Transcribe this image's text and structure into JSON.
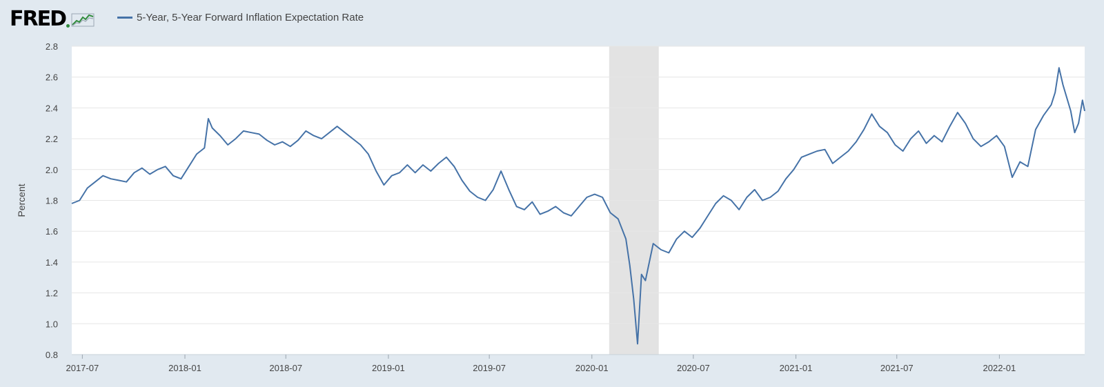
{
  "header": {
    "logo_text": "FRED",
    "logo_icon": "trend-line-icon",
    "legend_label": "5-Year, 5-Year Forward Inflation Expectation Rate"
  },
  "colors": {
    "background": "#e1e9f0",
    "plot": "#ffffff",
    "series": "#4572a7",
    "recession": "#e3e3e3",
    "grid": "#e6e6e6"
  },
  "chart_data": {
    "type": "line",
    "title": "",
    "xlabel": "",
    "ylabel": "Percent",
    "ylim": [
      0.8,
      2.8
    ],
    "xlim": [
      "2017-06-12",
      "2022-06-03"
    ],
    "grid": true,
    "legend": "top-left",
    "yticks": [
      0.8,
      1.0,
      1.2,
      1.4,
      1.6,
      1.8,
      2.0,
      2.2,
      2.4,
      2.6,
      2.8
    ],
    "ytick_labels": [
      "0.8",
      "1.0",
      "1.2",
      "1.4",
      "1.6",
      "1.8",
      "2.0",
      "2.2",
      "2.4",
      "2.6",
      "2.8"
    ],
    "xticks": [
      "2017-07-01",
      "2018-01-01",
      "2018-07-01",
      "2019-01-01",
      "2019-07-01",
      "2020-01-01",
      "2020-07-01",
      "2021-01-01",
      "2021-07-01",
      "2022-01-01"
    ],
    "xtick_labels": [
      "2017-07",
      "2018-01",
      "2018-07",
      "2019-01",
      "2019-07",
      "2020-01",
      "2020-07",
      "2021-01",
      "2021-07",
      "2022-01"
    ],
    "shaded_regions": [
      {
        "type": "recession",
        "start": "2020-02-01",
        "end": "2020-04-30"
      }
    ],
    "series": [
      {
        "name": "5-Year, 5-Year Forward Inflation Expectation Rate",
        "points": [
          [
            "2017-06-12",
            1.78
          ],
          [
            "2017-06-26",
            1.8
          ],
          [
            "2017-07-10",
            1.88
          ],
          [
            "2017-07-24",
            1.92
          ],
          [
            "2017-08-07",
            1.96
          ],
          [
            "2017-08-21",
            1.94
          ],
          [
            "2017-09-04",
            1.93
          ],
          [
            "2017-09-18",
            1.92
          ],
          [
            "2017-10-02",
            1.98
          ],
          [
            "2017-10-16",
            2.01
          ],
          [
            "2017-10-30",
            1.97
          ],
          [
            "2017-11-13",
            2.0
          ],
          [
            "2017-11-27",
            2.02
          ],
          [
            "2017-12-11",
            1.96
          ],
          [
            "2017-12-25",
            1.94
          ],
          [
            "2018-01-08",
            2.02
          ],
          [
            "2018-01-22",
            2.1
          ],
          [
            "2018-02-05",
            2.14
          ],
          [
            "2018-02-12",
            2.33
          ],
          [
            "2018-02-19",
            2.27
          ],
          [
            "2018-03-05",
            2.22
          ],
          [
            "2018-03-19",
            2.16
          ],
          [
            "2018-04-02",
            2.2
          ],
          [
            "2018-04-16",
            2.25
          ],
          [
            "2018-04-30",
            2.24
          ],
          [
            "2018-05-14",
            2.23
          ],
          [
            "2018-05-28",
            2.19
          ],
          [
            "2018-06-11",
            2.16
          ],
          [
            "2018-06-25",
            2.18
          ],
          [
            "2018-07-09",
            2.15
          ],
          [
            "2018-07-23",
            2.19
          ],
          [
            "2018-08-06",
            2.25
          ],
          [
            "2018-08-20",
            2.22
          ],
          [
            "2018-09-03",
            2.2
          ],
          [
            "2018-09-17",
            2.24
          ],
          [
            "2018-10-01",
            2.28
          ],
          [
            "2018-10-15",
            2.24
          ],
          [
            "2018-10-29",
            2.2
          ],
          [
            "2018-11-12",
            2.16
          ],
          [
            "2018-11-26",
            2.1
          ],
          [
            "2018-12-10",
            1.99
          ],
          [
            "2018-12-24",
            1.9
          ],
          [
            "2019-01-07",
            1.96
          ],
          [
            "2019-01-21",
            1.98
          ],
          [
            "2019-02-04",
            2.03
          ],
          [
            "2019-02-18",
            1.98
          ],
          [
            "2019-03-04",
            2.03
          ],
          [
            "2019-03-18",
            1.99
          ],
          [
            "2019-04-01",
            2.04
          ],
          [
            "2019-04-15",
            2.08
          ],
          [
            "2019-04-29",
            2.02
          ],
          [
            "2019-05-13",
            1.93
          ],
          [
            "2019-05-27",
            1.86
          ],
          [
            "2019-06-10",
            1.82
          ],
          [
            "2019-06-24",
            1.8
          ],
          [
            "2019-07-08",
            1.87
          ],
          [
            "2019-07-22",
            1.99
          ],
          [
            "2019-08-05",
            1.87
          ],
          [
            "2019-08-19",
            1.76
          ],
          [
            "2019-09-02",
            1.74
          ],
          [
            "2019-09-16",
            1.79
          ],
          [
            "2019-09-30",
            1.71
          ],
          [
            "2019-10-14",
            1.73
          ],
          [
            "2019-10-28",
            1.76
          ],
          [
            "2019-11-11",
            1.72
          ],
          [
            "2019-11-25",
            1.7
          ],
          [
            "2019-12-09",
            1.76
          ],
          [
            "2019-12-23",
            1.82
          ],
          [
            "2020-01-06",
            1.84
          ],
          [
            "2020-01-20",
            1.82
          ],
          [
            "2020-02-03",
            1.72
          ],
          [
            "2020-02-17",
            1.68
          ],
          [
            "2020-03-02",
            1.55
          ],
          [
            "2020-03-09",
            1.38
          ],
          [
            "2020-03-16",
            1.16
          ],
          [
            "2020-03-23",
            0.87
          ],
          [
            "2020-03-30",
            1.32
          ],
          [
            "2020-04-06",
            1.28
          ],
          [
            "2020-04-20",
            1.52
          ],
          [
            "2020-05-04",
            1.48
          ],
          [
            "2020-05-18",
            1.46
          ],
          [
            "2020-06-01",
            1.55
          ],
          [
            "2020-06-15",
            1.6
          ],
          [
            "2020-06-29",
            1.56
          ],
          [
            "2020-07-13",
            1.62
          ],
          [
            "2020-07-27",
            1.7
          ],
          [
            "2020-08-10",
            1.78
          ],
          [
            "2020-08-24",
            1.83
          ],
          [
            "2020-09-07",
            1.8
          ],
          [
            "2020-09-21",
            1.74
          ],
          [
            "2020-10-05",
            1.82
          ],
          [
            "2020-10-19",
            1.87
          ],
          [
            "2020-11-02",
            1.8
          ],
          [
            "2020-11-16",
            1.82
          ],
          [
            "2020-11-30",
            1.86
          ],
          [
            "2020-12-14",
            1.94
          ],
          [
            "2020-12-28",
            2.0
          ],
          [
            "2021-01-11",
            2.08
          ],
          [
            "2021-01-25",
            2.1
          ],
          [
            "2021-02-08",
            2.12
          ],
          [
            "2021-02-22",
            2.13
          ],
          [
            "2021-03-08",
            2.04
          ],
          [
            "2021-03-22",
            2.08
          ],
          [
            "2021-04-05",
            2.12
          ],
          [
            "2021-04-19",
            2.18
          ],
          [
            "2021-05-03",
            2.26
          ],
          [
            "2021-05-17",
            2.36
          ],
          [
            "2021-05-31",
            2.28
          ],
          [
            "2021-06-14",
            2.24
          ],
          [
            "2021-06-28",
            2.16
          ],
          [
            "2021-07-12",
            2.12
          ],
          [
            "2021-07-26",
            2.2
          ],
          [
            "2021-08-09",
            2.25
          ],
          [
            "2021-08-23",
            2.17
          ],
          [
            "2021-09-06",
            2.22
          ],
          [
            "2021-09-20",
            2.18
          ],
          [
            "2021-10-04",
            2.28
          ],
          [
            "2021-10-18",
            2.37
          ],
          [
            "2021-11-01",
            2.3
          ],
          [
            "2021-11-15",
            2.2
          ],
          [
            "2021-11-29",
            2.15
          ],
          [
            "2021-12-13",
            2.18
          ],
          [
            "2021-12-27",
            2.22
          ],
          [
            "2022-01-10",
            2.15
          ],
          [
            "2022-01-24",
            1.95
          ],
          [
            "2022-02-07",
            2.05
          ],
          [
            "2022-02-21",
            2.02
          ],
          [
            "2022-03-07",
            2.26
          ],
          [
            "2022-03-21",
            2.35
          ],
          [
            "2022-04-04",
            2.42
          ],
          [
            "2022-04-11",
            2.5
          ],
          [
            "2022-04-18",
            2.66
          ],
          [
            "2022-04-25",
            2.55
          ],
          [
            "2022-05-09",
            2.38
          ],
          [
            "2022-05-16",
            2.24
          ],
          [
            "2022-05-23",
            2.3
          ],
          [
            "2022-05-30",
            2.45
          ],
          [
            "2022-06-03",
            2.38
          ]
        ]
      }
    ]
  }
}
